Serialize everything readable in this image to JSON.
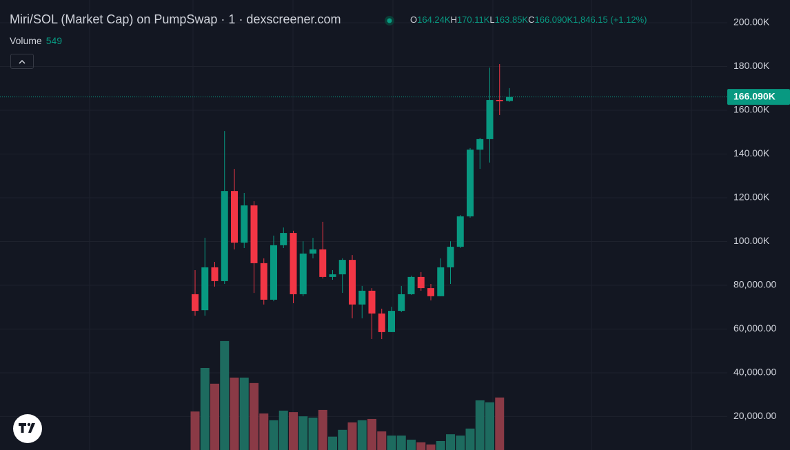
{
  "chart_data": {
    "type": "candlestick",
    "title": "Miri/SOL (Market Cap) on PumpSwap · 1 · dexscreener.com",
    "ohlc_legend": [
      {
        "label": "O",
        "text": "164.24K"
      },
      {
        "label": "H",
        "text": "170.11K"
      },
      {
        "label": "L",
        "text": "163.85K"
      },
      {
        "label": "C",
        "text": "166.090K"
      }
    ],
    "change": "1,846.15 (+1.12%)",
    "volume_label": "Volume",
    "last_price": {
      "value": 166090,
      "label": "166.090K"
    },
    "categories": [
      null,
      null,
      null,
      null,
      null,
      null,
      null,
      null,
      null,
      null,
      null,
      null,
      null,
      null,
      null,
      null,
      null,
      null,
      null,
      null,
      null,
      null,
      null,
      null,
      null,
      null,
      null,
      null,
      null,
      null,
      null,
      null,
      null
    ],
    "open": [
      75900,
      68600,
      88200,
      81900,
      123100,
      99500,
      116500,
      90100,
      73400,
      98300,
      103900,
      75900,
      94500,
      96400,
      83800,
      85000,
      91600,
      71200,
      77500,
      67100,
      58600,
      68300,
      75900,
      83800,
      78700,
      75000,
      88200,
      97600,
      111500,
      142000,
      146800,
      164700,
      164240
    ],
    "high": [
      86900,
      101700,
      90700,
      150500,
      133200,
      122200,
      118400,
      92300,
      102700,
      106400,
      104900,
      100100,
      101700,
      109000,
      86900,
      92300,
      93800,
      79700,
      78700,
      69300,
      70200,
      79700,
      84400,
      86000,
      80600,
      92300,
      100100,
      112100,
      142700,
      147400,
      179500,
      181100,
      170110
    ],
    "low": [
      66100,
      66100,
      79400,
      80600,
      96400,
      97000,
      76500,
      71200,
      72700,
      97000,
      71800,
      75000,
      92300,
      83100,
      82500,
      76500,
      64900,
      64900,
      55400,
      55400,
      58600,
      67700,
      75600,
      77500,
      73100,
      75000,
      80600,
      97000,
      110900,
      133200,
      136100,
      157800,
      163850
    ],
    "close": [
      68300,
      88200,
      81900,
      123100,
      99500,
      116500,
      90100,
      73400,
      98300,
      103900,
      75900,
      94500,
      96400,
      83800,
      85000,
      91600,
      71200,
      77500,
      67100,
      58600,
      68300,
      75900,
      83800,
      78700,
      75000,
      88200,
      97600,
      111500,
      142000,
      146800,
      164700,
      164100,
      166090
    ],
    "volume": [
      22300,
      42200,
      35000,
      54500,
      37800,
      37800,
      35300,
      21400,
      18300,
      22700,
      22000,
      20100,
      19500,
      23000,
      10800,
      13900,
      17300,
      18300,
      18900,
      13200,
      11300,
      11300,
      9400,
      8200,
      7200,
      8800,
      11900,
      11300,
      14500,
      27400,
      26500,
      28700,
      549
    ],
    "up_color": "#089981",
    "down_color": "#f23645",
    "volume_up_color": "#1d6b5f",
    "volume_down_color": "#8a3a46",
    "ylim": [
      4700,
      210400
    ],
    "yticks": [
      {
        "value": 200000,
        "label": "200.00K"
      },
      {
        "value": 180000,
        "label": "180.00K"
      },
      {
        "value": 160000,
        "label": "160.00K"
      },
      {
        "value": 140000,
        "label": "140.00K"
      },
      {
        "value": 120000,
        "label": "120.00K"
      },
      {
        "value": 100000,
        "label": "100.00K"
      },
      {
        "value": 80000,
        "label": "80,000.00"
      },
      {
        "value": 60000,
        "label": "60,000.00"
      },
      {
        "value": 40000,
        "label": "40,000.00"
      },
      {
        "value": 20000,
        "label": "20,000.00"
      }
    ],
    "grid": true
  }
}
